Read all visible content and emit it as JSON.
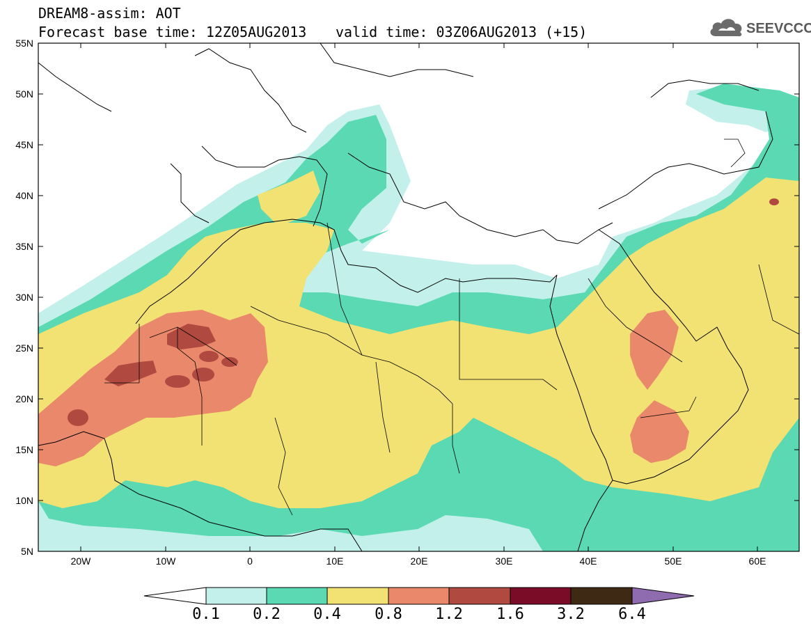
{
  "header": {
    "title_line1": "DREAM8-assim: AOT",
    "title_line2": "Forecast base time: 12Z05AUG2013",
    "valid_time": "valid time: 03Z06AUG2013 (+15)",
    "logo_text": "SEEVCCC"
  },
  "map": {
    "lat_labels": [
      "55N",
      "50N",
      "45N",
      "40N",
      "35N",
      "30N",
      "25N",
      "20N",
      "15N",
      "10N",
      "5N"
    ],
    "lon_labels": [
      "20W",
      "10W",
      "0",
      "10E",
      "20E",
      "30E",
      "40E",
      "50E",
      "60E"
    ]
  },
  "colorbar": {
    "labels": [
      "0.1",
      "0.2",
      "0.4",
      "0.8",
      "1.2",
      "1.6",
      "3.2",
      "6.4"
    ],
    "colors": [
      "#c4f0ec",
      "#5ad9b2",
      "#f2e173",
      "#e9886a",
      "#b04a41",
      "#7b0c27",
      "#3d2914",
      "#8f6bb0"
    ],
    "low_color": "#ffffff"
  }
}
